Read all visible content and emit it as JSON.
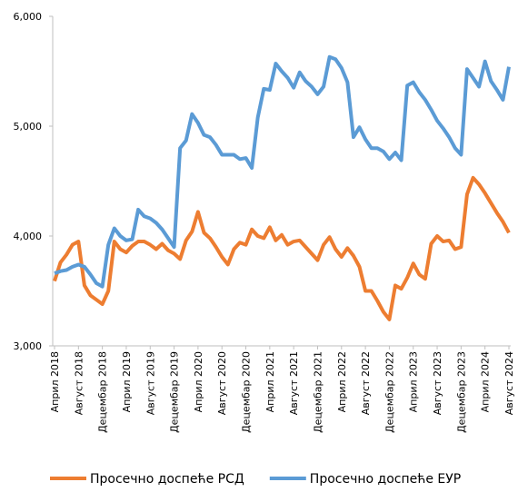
{
  "chart_data": {
    "type": "line",
    "categories": [
      "Април 2018",
      null,
      null,
      null,
      "Август 2018",
      null,
      null,
      null,
      "Децембар 2018",
      null,
      null,
      null,
      "Април 2019",
      null,
      null,
      null,
      "Август 2019",
      null,
      null,
      null,
      "Децембар 2019",
      null,
      null,
      null,
      "Април 2020",
      null,
      null,
      null,
      "Август 2020",
      null,
      null,
      null,
      "Децембар 2020",
      null,
      null,
      null,
      "Април 2021",
      null,
      null,
      null,
      "Август 2021",
      null,
      null,
      null,
      "Децембар 2021",
      null,
      null,
      null,
      "Април 2022",
      null,
      null,
      null,
      "Август 2022",
      null,
      null,
      null,
      "Децембар 2022",
      null,
      null,
      null,
      "Април 2023",
      null,
      null,
      null,
      "Август 2023",
      null,
      null,
      null,
      "Децембар 2023",
      null,
      null,
      null,
      "Април 2024",
      null,
      null,
      null,
      "Август 2024"
    ],
    "series": [
      {
        "name": "Просечно доспеће РСД",
        "color": "#ed7d31",
        "values": [
          3590,
          3760,
          3830,
          3920,
          3950,
          3550,
          3460,
          3420,
          3380,
          3500,
          3950,
          3880,
          3850,
          3910,
          3950,
          3950,
          3920,
          3880,
          3930,
          3870,
          3840,
          3790,
          3960,
          4040,
          4220,
          4030,
          3980,
          3900,
          3810,
          3740,
          3880,
          3940,
          3920,
          4060,
          4000,
          3980,
          4080,
          3960,
          4010,
          3920,
          3950,
          3960,
          3900,
          3840,
          3780,
          3920,
          3990,
          3880,
          3810,
          3890,
          3820,
          3720,
          3500,
          3500,
          3410,
          3310,
          3240,
          3550,
          3520,
          3620,
          3750,
          3650,
          3610,
          3930,
          4000,
          3950,
          3960,
          3880,
          3900,
          4380,
          4530,
          4470,
          4390,
          4300,
          4210,
          4130,
          4030
        ]
      },
      {
        "name": "Просечно доспеће ЕУР",
        "color": "#5b9bd5",
        "values": [
          3660,
          3680,
          3690,
          3720,
          3740,
          3720,
          3650,
          3570,
          3540,
          3920,
          4070,
          4000,
          3960,
          3970,
          4240,
          4180,
          4160,
          4120,
          4060,
          3980,
          3900,
          4800,
          4870,
          5110,
          5030,
          4920,
          4900,
          4830,
          4740,
          4740,
          4740,
          4700,
          4710,
          4620,
          5080,
          5340,
          5330,
          5570,
          5500,
          5440,
          5350,
          5490,
          5410,
          5360,
          5290,
          5360,
          5630,
          5610,
          5530,
          5400,
          4900,
          4990,
          4880,
          4800,
          4800,
          4770,
          4700,
          4760,
          4690,
          5370,
          5400,
          5310,
          5240,
          5150,
          5050,
          4980,
          4900,
          4800,
          4740,
          5520,
          5440,
          5360,
          5590,
          5410,
          5330,
          5240,
          5540
        ]
      }
    ],
    "ylim": [
      3000,
      6000
    ],
    "yticks": [
      {
        "value": 3000,
        "label": "3,000"
      },
      {
        "value": 4000,
        "label": "4,000"
      },
      {
        "value": 5000,
        "label": "5,000"
      },
      {
        "value": 6000,
        "label": "6,000"
      }
    ],
    "legend": "bottom"
  }
}
